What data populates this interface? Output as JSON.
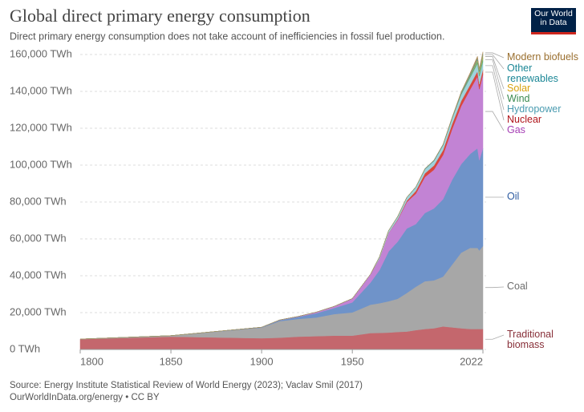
{
  "chart_data": {
    "type": "stacked-area",
    "title": "Global direct primary energy consumption",
    "subtitle": "Direct primary energy consumption does not take account of inefficiencies in fossil fuel production.",
    "logo": "Our World in Data",
    "source": "Source: Energy Institute Statistical Review of World Energy (2023); Vaclav Smil (2017)",
    "credit": "OurWorldInData.org/energy • CC BY",
    "x": [
      1800,
      1850,
      1900,
      1910,
      1920,
      1930,
      1940,
      1950,
      1960,
      1965,
      1970,
      1975,
      1980,
      1985,
      1990,
      1995,
      2000,
      2005,
      2010,
      2015,
      2019,
      2020,
      2022
    ],
    "xlim": [
      1800,
      2022
    ],
    "xticks": [
      1800,
      1850,
      1900,
      1950,
      2022
    ],
    "ylim": [
      0,
      160000
    ],
    "yticks": [
      {
        "value": 0,
        "label": "0 TWh"
      },
      {
        "value": 20000,
        "label": "20,000 TWh"
      },
      {
        "value": 40000,
        "label": "40,000 TWh"
      },
      {
        "value": 60000,
        "label": "60,000 TWh"
      },
      {
        "value": 80000,
        "label": "80,000 TWh"
      },
      {
        "value": 100000,
        "label": "100,000 TWh"
      },
      {
        "value": 120000,
        "label": "120,000 TWh"
      },
      {
        "value": 140000,
        "label": "140,000 TWh"
      },
      {
        "value": 160000,
        "label": "160,000 TWh"
      }
    ],
    "grid": true,
    "series": [
      {
        "name": "Traditional biomass",
        "color": "#c4676d",
        "label_color": "#883039",
        "values": [
          5556,
          6944,
          6111,
          6389,
          6944,
          7222,
          7500,
          7500,
          8889,
          9000,
          9167,
          9500,
          9722,
          10500,
          11111,
          11500,
          12500,
          12000,
          11500,
          11111,
          11111,
          11111,
          11111
        ]
      },
      {
        "name": "Coal",
        "color": "#a7a7a7",
        "label_color": "#6d6d6d",
        "values": [
          97,
          570,
          5728,
          9000,
          9600,
          10100,
          11700,
          12600,
          15400,
          16100,
          17000,
          18000,
          20900,
          23500,
          25900,
          26000,
          27000,
          34000,
          41000,
          44000,
          44000,
          42600,
          45000
        ]
      },
      {
        "name": "Oil",
        "color": "#6f93c9",
        "label_color": "#2c5aa0",
        "values": [
          0,
          0,
          181,
          500,
          1100,
          2300,
          3300,
          5440,
          12000,
          18000,
          27000,
          31000,
          35000,
          34000,
          37000,
          39000,
          42000,
          46000,
          48000,
          51000,
          54000,
          49000,
          53000
        ]
      },
      {
        "name": "Gas",
        "color": "#c283d4",
        "label_color": "#a63fb5",
        "values": [
          0,
          0,
          64,
          150,
          250,
          600,
          900,
          2100,
          4500,
          6300,
          10000,
          11700,
          14300,
          16500,
          19500,
          21000,
          24000,
          27500,
          31500,
          35000,
          39000,
          38500,
          40000
        ]
      },
      {
        "name": "Nuclear",
        "color": "#d9473e",
        "label_color": "#b0151b",
        "values": [
          0,
          0,
          0,
          0,
          0,
          0,
          0,
          0,
          0,
          26,
          80,
          380,
          710,
          1500,
          2000,
          2300,
          2580,
          2770,
          2770,
          2570,
          2800,
          2700,
          2680
        ]
      },
      {
        "name": "Hydropower",
        "color": "#9fd2dc",
        "label_color": "#4a9bb0",
        "values": [
          0,
          0,
          0,
          0,
          0,
          0,
          0,
          0,
          0,
          920,
          1200,
          1500,
          1750,
          2000,
          2200,
          2500,
          2700,
          2950,
          3450,
          3900,
          4200,
          4350,
          4330
        ]
      },
      {
        "name": "Wind",
        "color": "#62ad76",
        "label_color": "#3a8a50",
        "values": [
          0,
          0,
          0,
          0,
          0,
          0,
          0,
          0,
          0,
          0,
          0,
          0,
          0,
          0,
          0,
          8,
          31,
          104,
          346,
          830,
          1420,
          1590,
          2100
        ]
      },
      {
        "name": "Solar",
        "color": "#e5b83e",
        "label_color": "#d8a20e",
        "values": [
          0,
          0,
          0,
          0,
          0,
          0,
          0,
          0,
          0,
          0,
          0,
          0,
          0,
          0,
          0,
          0,
          0,
          4,
          34,
          260,
          700,
          850,
          1320
        ]
      },
      {
        "name": "Other renewables",
        "color": "#3c9aa8",
        "label_color": "#1b8796",
        "values": [
          0,
          0,
          0,
          0,
          0,
          0,
          0,
          0,
          0,
          50,
          70,
          100,
          140,
          200,
          280,
          320,
          350,
          400,
          530,
          680,
          770,
          780,
          800
        ]
      },
      {
        "name": "Modern biofuels",
        "color": "#b09160",
        "label_color": "#9a6f2f",
        "values": [
          0,
          0,
          0,
          0,
          0,
          0,
          0,
          0,
          0,
          0,
          0,
          0,
          0,
          0,
          70,
          80,
          110,
          220,
          650,
          850,
          1100,
          1000,
          1100
        ]
      }
    ]
  }
}
